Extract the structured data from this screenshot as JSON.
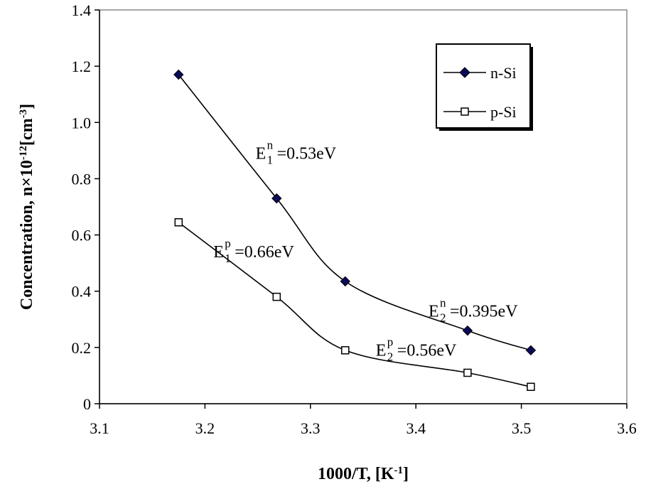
{
  "chart_data": {
    "type": "line",
    "xlabel": "1000/T, [K",
    "xlabel_sup": "-1",
    "xlabel_end": "]",
    "ylabel": "Concentration,  n×10",
    "ylabel_sup1": "-12",
    "ylabel_mid": "[cm",
    "ylabel_sup2": "-3",
    "ylabel_end": "]",
    "xlim": [
      3.1,
      3.6
    ],
    "ylim": [
      0,
      1.4
    ],
    "x_ticks": [
      "3.1",
      "3.2",
      "3.3",
      "3.4",
      "3.5",
      "3.6"
    ],
    "y_ticks": [
      "0",
      "0.2",
      "0.4",
      "0.6",
      "0.8",
      "1.0",
      "1.2",
      "1.4"
    ],
    "grid": false,
    "legend_position": "top-right",
    "series": [
      {
        "name": "n-Si",
        "marker": "filled-diamond",
        "color": "#0a0a5a",
        "x": [
          3.175,
          3.268,
          3.333,
          3.449,
          3.509
        ],
        "y": [
          1.17,
          0.73,
          0.435,
          0.26,
          0.19
        ]
      },
      {
        "name": "p-Si",
        "marker": "open-square",
        "color": "#000000",
        "x": [
          3.175,
          3.268,
          3.333,
          3.449,
          3.509
        ],
        "y": [
          0.645,
          0.38,
          0.19,
          0.11,
          0.06
        ]
      }
    ],
    "annotations": [
      {
        "main": "E",
        "sub": "1",
        "sup": "n",
        "text": "=0.53eV",
        "x": 3.248,
        "y": 0.87
      },
      {
        "main": "E",
        "sub": "1",
        "sup": "p",
        "text": "=0.66eV",
        "x": 3.208,
        "y": 0.52
      },
      {
        "main": "E",
        "sub": "2",
        "sup": "n",
        "text": "=0.395eV",
        "x": 3.412,
        "y": 0.31
      },
      {
        "main": "E",
        "sub": "2",
        "sup": "p",
        "text": "=0.56eV",
        "x": 3.362,
        "y": 0.17
      }
    ]
  }
}
